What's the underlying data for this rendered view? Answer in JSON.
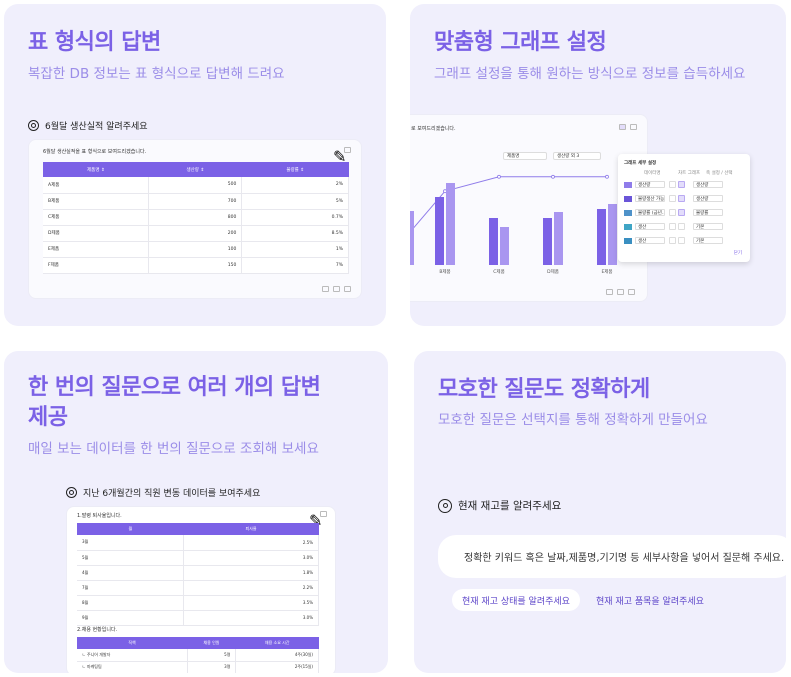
{
  "card1": {
    "title": "표 형식의 답변",
    "subtitle": "복잡한 DB 정보는 표 형식으로 답변해 드려요",
    "question": "6월달 생산실적 알려주세요",
    "answer_msg": "6월달 생산실적을 표 형식으로 보여드리겠습니다.",
    "table": {
      "headers": [
        "제품명 ⇕",
        "생산량 ⇕",
        "불량률 ⇕"
      ],
      "rows": [
        [
          "A제품",
          "500",
          "2%"
        ],
        [
          "B제품",
          "700",
          "5%"
        ],
        [
          "C제품",
          "800",
          "0.7%"
        ],
        [
          "D제품",
          "200",
          "8.5%"
        ],
        [
          "E제품",
          "100",
          "1%"
        ],
        [
          "F제품",
          "150",
          "7%"
        ]
      ]
    }
  },
  "card2": {
    "title": "맞춤형 그래프 설정",
    "subtitle": "그래프 설정을 통해 원하는 방식으로 정보를 습득하세요",
    "answer_msg": "로 보여드리겠습니다.",
    "filter1": "제품명",
    "filter2": "생산량 외 3",
    "chart_data": {
      "type": "bar",
      "categories": [
        "B제품",
        "C제품",
        "D제품",
        "E제품"
      ],
      "series": [
        {
          "values": [
            76,
            52,
            52,
            62
          ]
        },
        {
          "values": [
            91,
            42,
            59,
            68
          ]
        },
        {
          "values": [
            64,
            64,
            64,
            64
          ]
        }
      ]
    },
    "settings": {
      "title": "그래프 세부 설정",
      "col_headers": [
        "데이터명",
        "차트 그래프",
        "축 설정 / 선택"
      ],
      "rows": [
        {
          "color": "#8f7cea",
          "name": "생산량",
          "axis": "생산량"
        },
        {
          "color": "#6a55d8",
          "name": "불량생산 가능...",
          "axis": "생산량"
        },
        {
          "color": "#4e92c9",
          "name": "불량률 (금년...",
          "axis": "불량률"
        },
        {
          "color": "#3fa5c5",
          "name": "생산",
          "axis": "기본"
        },
        {
          "color": "#3a8fc1",
          "name": "생산",
          "axis": "기본"
        }
      ],
      "close_label": "닫기"
    }
  },
  "card3": {
    "title_line1": "한 번의 질문으로 여러 개의 답변",
    "title_line2": "제공",
    "subtitle": "매일 보는 데이터를 한 번의 질문으로 조회해 보세요",
    "question": "지난 6개월간의 직원 변동 데이터를 보여주세요",
    "section1": "1.발령 퇴사율입니다.",
    "table1": {
      "headers": [
        "월",
        "퇴사율"
      ],
      "rows": [
        [
          "3월",
          "2.5%"
        ],
        [
          "5월",
          "3.0%"
        ],
        [
          "4월",
          "1.8%"
        ],
        [
          "7월",
          "2.2%"
        ],
        [
          "8월",
          "3.5%"
        ],
        [
          "9월",
          "3.0%"
        ]
      ]
    },
    "section2": "2.채용 현황입니다.",
    "table2": {
      "headers": [
        "직책",
        "채용 인원",
        "채용 소요 시간"
      ],
      "rows": [
        [
          "ㄴ 주니어 개발자",
          "5명",
          "4주(30일)"
        ],
        [
          "ㄴ 마케팅팀",
          "3명",
          "2주(15일)"
        ]
      ]
    }
  },
  "card4": {
    "title": "모호한 질문도 정확하게",
    "subtitle": "모호한 질문은 선택지를 통해 정확하게 만들어요",
    "question": "현재 재고를 알려주세요",
    "answer": "정확한 키워드 혹은 날짜,제품명,기기명 등 세부사항을 넣어서 질문해 주세요.",
    "chip1": "현재 재고 상태를 알려주세요",
    "chip2": "현재 재고 품목을 알려주세요"
  }
}
